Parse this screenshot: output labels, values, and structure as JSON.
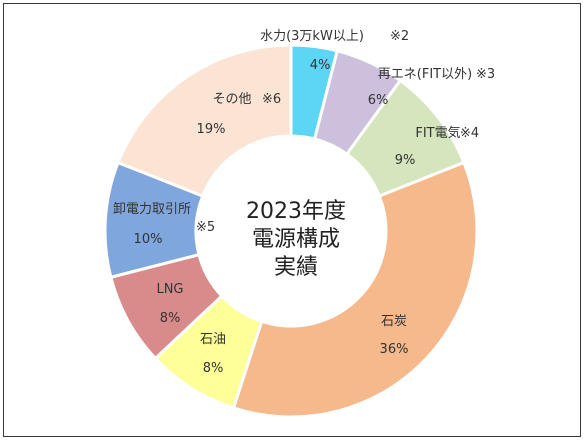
{
  "chart_data": {
    "type": "pie",
    "donut": true,
    "center_title": [
      "2023年度",
      "電源構成",
      "実績"
    ],
    "categories": [
      "水力(3万kW以上)",
      "再エネ(FIT以外)",
      "FIT電気",
      "石炭",
      "石油",
      "LNG",
      "卸電力取引所",
      "その他"
    ],
    "values": [
      4,
      6,
      9,
      36,
      8,
      8,
      10,
      19
    ],
    "value_labels": [
      "4%",
      "6%",
      "9%",
      "36%",
      "8%",
      "8%",
      "10%",
      "19%"
    ],
    "notes": [
      "※2",
      "※3",
      "※4",
      "",
      "",
      "",
      "※5",
      "※6"
    ],
    "colors": [
      "#5dd5f5",
      "#ccc0dc",
      "#d5e5bd",
      "#f5b98b",
      "#ffff99",
      "#d98b8b",
      "#7fa7dd",
      "#fce4d4"
    ],
    "start_angle_deg": 0,
    "direction": "clockwise"
  }
}
